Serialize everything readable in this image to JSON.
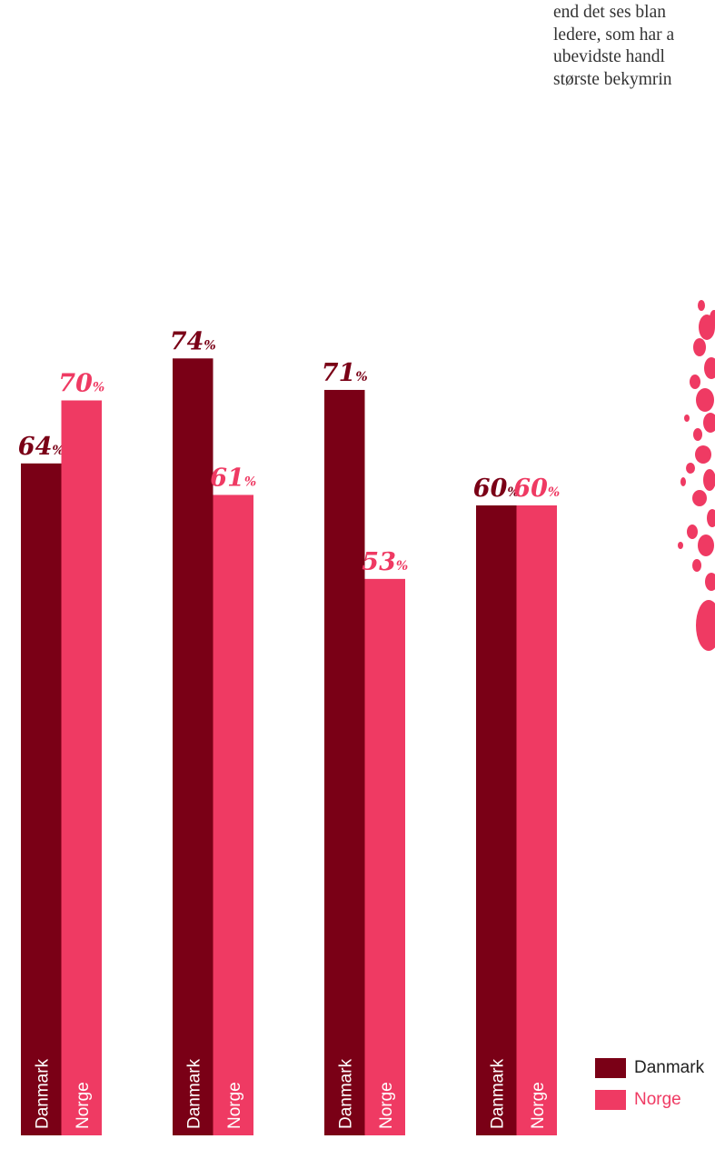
{
  "intro_text_lines": [
    "end det ses blan",
    "ledere, som har a",
    "ubevidste handl",
    "største bekymrin"
  ],
  "colors": {
    "danmark": "#7a0016",
    "norge": "#ef3a63"
  },
  "chart_data": {
    "type": "bar",
    "categories": [
      "",
      "",
      "",
      ""
    ],
    "series": [
      {
        "name": "Danmark",
        "values": [
          64,
          74,
          71,
          60
        ]
      },
      {
        "name": "Norge",
        "values": [
          70,
          61,
          53,
          60
        ]
      }
    ],
    "value_suffix": "%",
    "bar_labels": {
      "danmark": "Danmark",
      "norge": "Norge"
    },
    "legend": [
      "Danmark",
      "Norge"
    ],
    "legend_position": "bottom-right",
    "ylim": [
      0,
      80
    ],
    "grid": false
  }
}
